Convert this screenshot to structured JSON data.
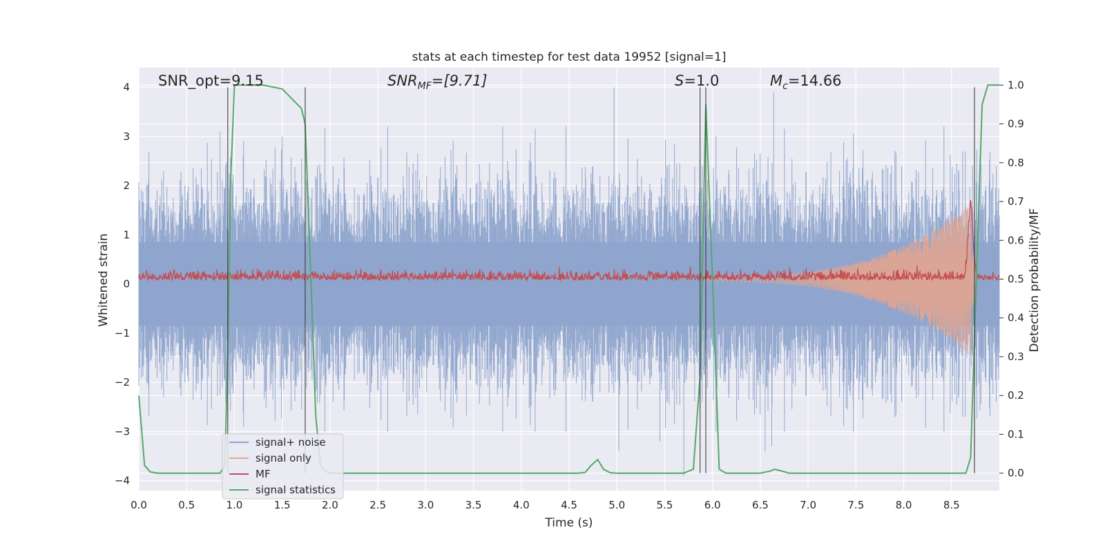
{
  "chart_data": {
    "type": "line",
    "title": "stats at each timestep for test data 19952 [signal=1]",
    "xlabel": "Time (s)",
    "ylabel_left": "Whitened strain",
    "ylabel_right": "Detection probability/MF",
    "xlim": [
      0,
      9.0
    ],
    "ylim_left": [
      -4.2,
      4.4
    ],
    "ylim_right": [
      -0.045,
      1.045
    ],
    "x_ticks": [
      "0.0",
      "0.5",
      "1.0",
      "1.5",
      "2.0",
      "2.5",
      "3.0",
      "3.5",
      "4.0",
      "4.5",
      "5.0",
      "5.5",
      "6.0",
      "6.5",
      "7.0",
      "7.5",
      "8.0",
      "8.5"
    ],
    "y_ticks_left": [
      "4",
      "3",
      "2",
      "1",
      "0",
      "−1",
      "−2",
      "−3",
      "−4"
    ],
    "y_ticks_right": [
      "1.0",
      "0.9",
      "0.8",
      "0.7",
      "0.6",
      "0.5",
      "0.4",
      "0.3",
      "0.2",
      "0.1",
      "0.0"
    ],
    "grid": true,
    "legend_position": "lower-left",
    "annotations": {
      "snr_opt": "SNR_opt=9.15",
      "snr_mf_base": "SNR",
      "snr_mf_sub": "MF",
      "snr_mf_rest": "=[9.71]",
      "s_italic": "S",
      "s_rest": "=1.0",
      "mc_base": "M",
      "mc_sub": "c",
      "mc_rest": "=14.66"
    },
    "vertical_markers": [
      0.93,
      1.74,
      5.87,
      5.93,
      8.74
    ],
    "series": [
      {
        "name": "signal+ noise",
        "color": "#8ea4cc",
        "std": 0.85,
        "spikes_up": [
          [
            0.85,
            3.1
          ],
          [
            1.5,
            3.0
          ],
          [
            4.97,
            4.0
          ],
          [
            6.64,
            3.9
          ],
          [
            8.72,
            2.4
          ]
        ],
        "spikes_down": [
          [
            5.02,
            -3.4
          ],
          [
            5.45,
            -3.2
          ],
          [
            5.7,
            -3.9
          ],
          [
            6.55,
            -3.4
          ],
          [
            6.62,
            -3.3
          ],
          [
            8.74,
            -3.6
          ]
        ]
      },
      {
        "name": "signal only",
        "color": "#e8a58c",
        "chirp": {
          "start": 5.9,
          "peak": 8.7,
          "amplitude_peak": 1.5,
          "offset": 0.1
        }
      },
      {
        "name": "MF",
        "color": "#c44e52",
        "baseline": 0.12,
        "noise": 0.09,
        "peak": {
          "x": 8.7,
          "value": 1.6
        }
      },
      {
        "name": "signal statistics",
        "color": "#55a868",
        "x": [
          0.0,
          0.06,
          0.12,
          0.2,
          0.5,
          0.85,
          0.9,
          0.93,
          0.96,
          1.0,
          1.3,
          1.5,
          1.62,
          1.7,
          1.74,
          1.8,
          1.85,
          1.9,
          1.95,
          2.0,
          4.6,
          4.67,
          4.73,
          4.8,
          4.86,
          4.93,
          5.0,
          5.7,
          5.8,
          5.87,
          5.93,
          6.0,
          6.07,
          6.14,
          6.5,
          6.6,
          6.65,
          6.73,
          6.8,
          8.65,
          8.7,
          8.76,
          8.82,
          8.88,
          9.0
        ],
        "y": [
          0.2,
          0.02,
          0.003,
          0.0,
          0.0,
          0.0,
          0.02,
          0.3,
          0.75,
          1.0,
          1.0,
          0.99,
          0.96,
          0.94,
          0.9,
          0.5,
          0.15,
          0.02,
          0.005,
          0.0,
          0.0,
          0.002,
          0.02,
          0.035,
          0.01,
          0.001,
          0.0,
          0.0,
          0.01,
          0.25,
          0.95,
          0.5,
          0.01,
          0.0,
          0.0,
          0.005,
          0.01,
          0.005,
          0.0,
          0.0,
          0.04,
          0.5,
          0.95,
          1.0,
          1.0
        ]
      }
    ]
  }
}
